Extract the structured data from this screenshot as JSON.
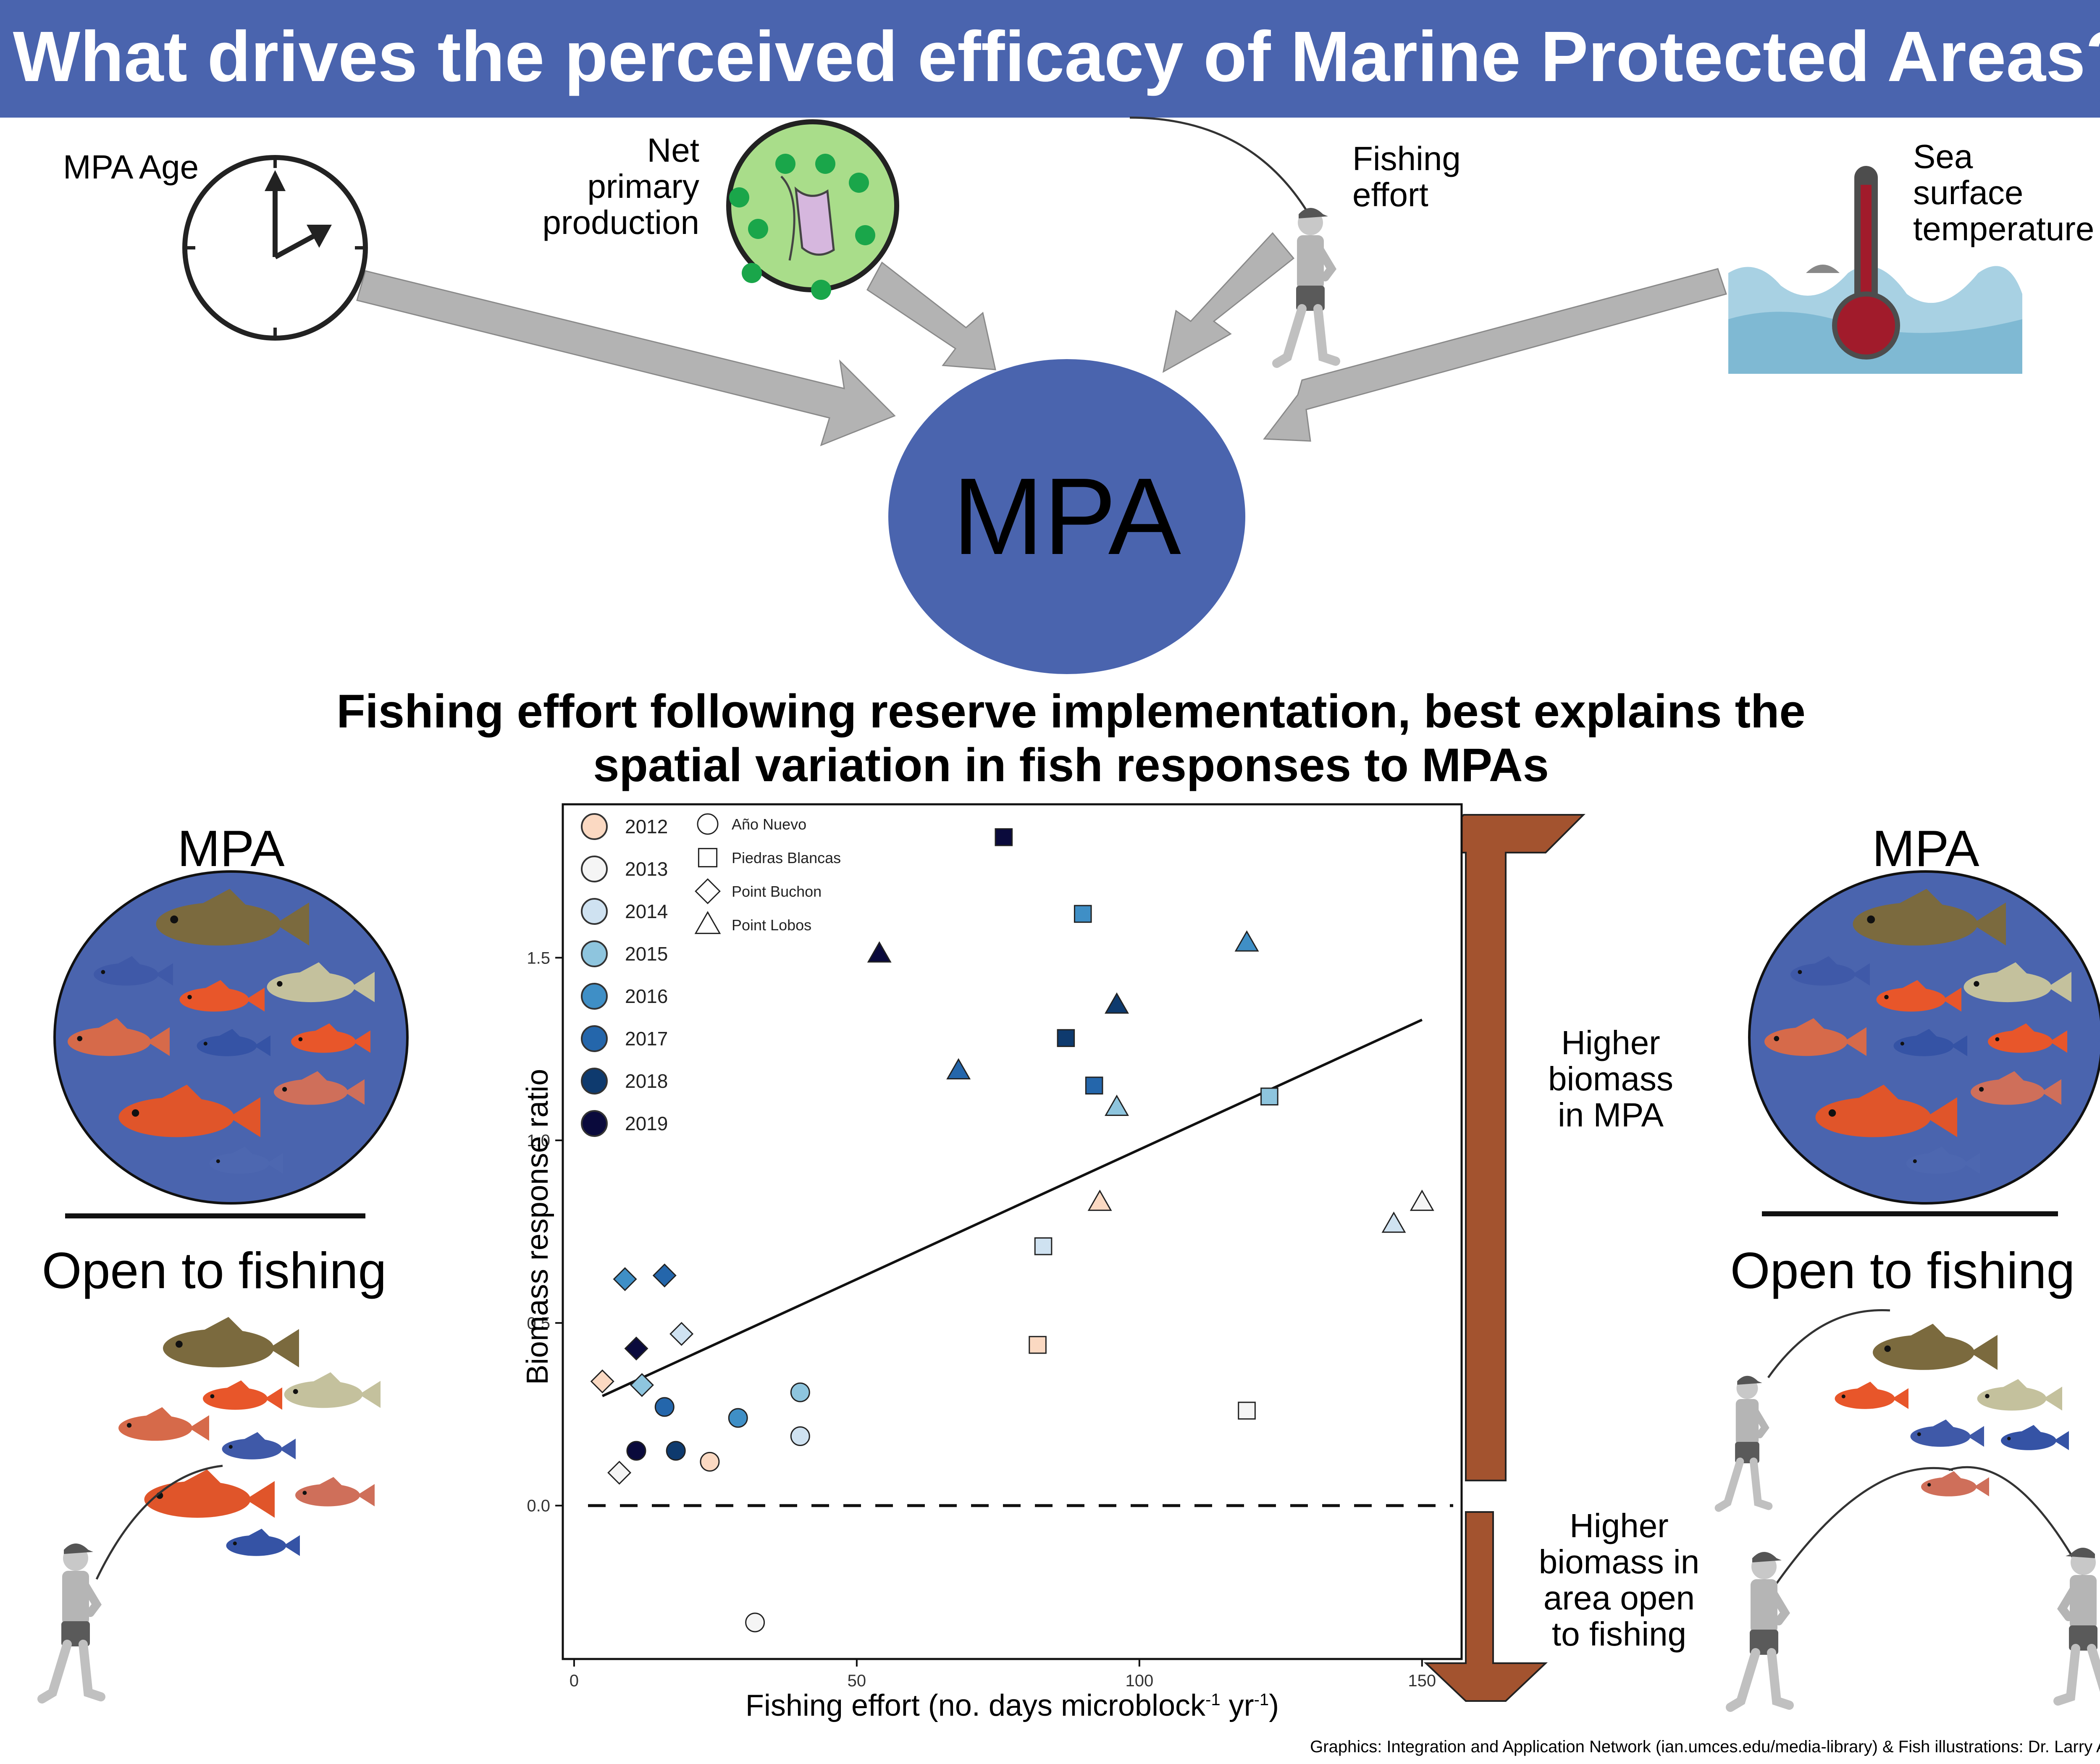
{
  "header": {
    "title": "What drives the perceived efficacy of Marine Protected Areas?"
  },
  "drivers": {
    "age": "MPA Age",
    "npp": [
      "Net",
      "primary",
      "production"
    ],
    "fishing": [
      "Fishing",
      "effort"
    ],
    "sst": [
      "Sea",
      "surface",
      "temperature"
    ]
  },
  "center_label": "MPA",
  "conclusion": [
    "Fishing effort following reserve implementation, best explains the",
    "spatial variation in fish responses to MPAs"
  ],
  "side_panels": {
    "mpa_label": "MPA",
    "open_label": "Open to fishing"
  },
  "arrows": {
    "up_label": [
      "Higher",
      "biomass",
      "in MPA"
    ],
    "down_label": [
      "Higher",
      "biomass in",
      "area open",
      "to fishing"
    ]
  },
  "colors": {
    "banner": "#4a64ae",
    "mpa_circle": "#4a64ae",
    "arrow": "#a3532f",
    "year_2012": "#fbd9c2",
    "year_2013": "#f5f5f5",
    "year_2014": "#cfe2f1",
    "year_2015": "#8ec5de",
    "year_2016": "#3f8fc6",
    "year_2017": "#2466ab",
    "year_2018": "#0e3a6e",
    "year_2019": "#0a0a3c"
  },
  "chart_data": {
    "type": "scatter",
    "xlabel": "Fishing effort (no. days microblock",
    "xlabel_sup1": "-1",
    "xlabel_mid": " yr",
    "xlabel_sup2": "-1",
    "xlabel_end": ")",
    "ylabel": "Biomass response ratio",
    "xlim": [
      -2,
      157
    ],
    "ylim": [
      -0.42,
      1.92
    ],
    "x_ticks": [
      "0",
      "50",
      "100",
      "150"
    ],
    "x_tick_values": [
      0,
      50,
      100,
      150
    ],
    "y_ticks": [
      "0.0",
      "0.5",
      "1.0",
      "1.5"
    ],
    "y_tick_values": [
      0.0,
      0.5,
      1.0,
      1.5
    ],
    "grid": false,
    "legend_years": [
      "2012",
      "2013",
      "2014",
      "2015",
      "2016",
      "2017",
      "2018",
      "2019"
    ],
    "legend_sites": [
      "Año Nuevo",
      "Piedras Blancas",
      "Point Buchon",
      "Point Lobos"
    ],
    "legend_placement": "top-left",
    "trend_line": {
      "x": [
        5,
        150
      ],
      "y": [
        0.3,
        1.33
      ]
    },
    "reference_line": {
      "y": 0.0,
      "style": "dashed"
    },
    "points": [
      {
        "site": "Año Nuevo",
        "year": "2012",
        "x": 24,
        "y": 0.12
      },
      {
        "site": "Año Nuevo",
        "year": "2013",
        "x": 32,
        "y": -0.32
      },
      {
        "site": "Año Nuevo",
        "year": "2014",
        "x": 40,
        "y": 0.19
      },
      {
        "site": "Año Nuevo",
        "year": "2015",
        "x": 40,
        "y": 0.31
      },
      {
        "site": "Año Nuevo",
        "year": "2016",
        "x": 29,
        "y": 0.24
      },
      {
        "site": "Año Nuevo",
        "year": "2017",
        "x": 16,
        "y": 0.27
      },
      {
        "site": "Año Nuevo",
        "year": "2018",
        "x": 18,
        "y": 0.15
      },
      {
        "site": "Año Nuevo",
        "year": "2019",
        "x": 11,
        "y": 0.15
      },
      {
        "site": "Piedras Blancas",
        "year": "2012",
        "x": 82,
        "y": 0.44
      },
      {
        "site": "Piedras Blancas",
        "year": "2013",
        "x": 119,
        "y": 0.26
      },
      {
        "site": "Piedras Blancas",
        "year": "2014",
        "x": 83,
        "y": 0.71
      },
      {
        "site": "Piedras Blancas",
        "year": "2015",
        "x": 123,
        "y": 1.12
      },
      {
        "site": "Piedras Blancas",
        "year": "2016",
        "x": 90,
        "y": 1.62
      },
      {
        "site": "Piedras Blancas",
        "year": "2017",
        "x": 92,
        "y": 1.15
      },
      {
        "site": "Piedras Blancas",
        "year": "2018",
        "x": 87,
        "y": 1.28
      },
      {
        "site": "Piedras Blancas",
        "year": "2019",
        "x": 76,
        "y": 1.83
      },
      {
        "site": "Point Buchon",
        "year": "2012",
        "x": 5,
        "y": 0.34
      },
      {
        "site": "Point Buchon",
        "year": "2013",
        "x": 8,
        "y": 0.09
      },
      {
        "site": "Point Buchon",
        "year": "2014",
        "x": 19,
        "y": 0.47
      },
      {
        "site": "Point Buchon",
        "year": "2015",
        "x": 12,
        "y": 0.33
      },
      {
        "site": "Point Buchon",
        "year": "2016",
        "x": 9,
        "y": 0.62
      },
      {
        "site": "Point Buchon",
        "year": "2017",
        "x": 16,
        "y": 0.63
      },
      {
        "site": "Point Buchon",
        "year": "2019",
        "x": 11,
        "y": 0.43
      },
      {
        "site": "Point Lobos",
        "year": "2012",
        "x": 93,
        "y": 0.83
      },
      {
        "site": "Point Lobos",
        "year": "2013",
        "x": 150,
        "y": 0.83
      },
      {
        "site": "Point Lobos",
        "year": "2014",
        "x": 145,
        "y": 0.77
      },
      {
        "site": "Point Lobos",
        "year": "2015",
        "x": 96,
        "y": 1.09
      },
      {
        "site": "Point Lobos",
        "year": "2016",
        "x": 119,
        "y": 1.54
      },
      {
        "site": "Point Lobos",
        "year": "2017",
        "x": 68,
        "y": 1.19
      },
      {
        "site": "Point Lobos",
        "year": "2018",
        "x": 96,
        "y": 1.37
      },
      {
        "site": "Point Lobos",
        "year": "2019",
        "x": 54,
        "y": 1.51
      }
    ]
  },
  "footer": "Graphics: Integration and Application Network (ian.umces.edu/media-library) & Fish illustrations: Dr. Larry Allen"
}
